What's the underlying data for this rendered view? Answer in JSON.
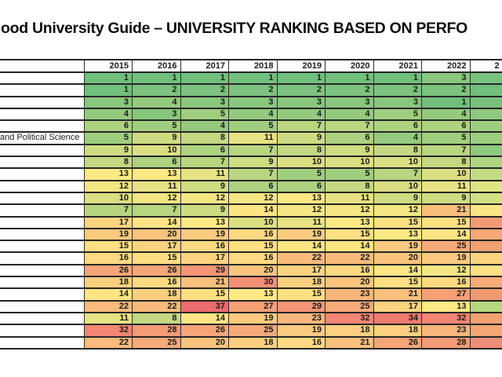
{
  "chart_data": {
    "type": "heatmap",
    "title": "ood University Guide – UNIVERSITY RANKING BASED ON PERFO",
    "x": [
      "2015",
      "2016",
      "2017",
      "2018",
      "2019",
      "2020",
      "2021",
      "2022"
    ],
    "row_labels": [
      "",
      "",
      "",
      "",
      "",
      "and Political Science",
      "",
      "",
      "",
      "",
      "",
      "",
      "",
      "",
      "",
      "",
      "",
      "",
      "",
      "",
      "",
      "",
      ""
    ],
    "rows": [
      [
        1,
        1,
        1,
        1,
        1,
        1,
        1,
        3
      ],
      [
        1,
        2,
        2,
        2,
        2,
        2,
        2,
        2
      ],
      [
        3,
        4,
        3,
        3,
        3,
        3,
        3,
        1
      ],
      [
        4,
        3,
        5,
        4,
        4,
        4,
        5,
        4
      ],
      [
        6,
        5,
        4,
        5,
        7,
        7,
        6,
        6
      ],
      [
        5,
        9,
        8,
        11,
        9,
        6,
        4,
        5
      ],
      [
        9,
        10,
        6,
        7,
        8,
        9,
        8,
        7
      ],
      [
        8,
        6,
        7,
        9,
        10,
        10,
        10,
        8
      ],
      [
        13,
        13,
        11,
        7,
        5,
        5,
        7,
        10
      ],
      [
        12,
        11,
        9,
        6,
        6,
        8,
        10,
        11
      ],
      [
        10,
        12,
        12,
        12,
        13,
        11,
        9,
        9
      ],
      [
        7,
        7,
        9,
        14,
        12,
        12,
        12,
        21
      ],
      [
        17,
        14,
        13,
        10,
        11,
        13,
        15,
        15
      ],
      [
        19,
        20,
        19,
        16,
        19,
        15,
        13,
        14
      ],
      [
        15,
        17,
        16,
        15,
        14,
        14,
        19,
        25
      ],
      [
        16,
        15,
        17,
        16,
        22,
        22,
        20,
        19
      ],
      [
        26,
        26,
        29,
        20,
        17,
        16,
        14,
        12
      ],
      [
        18,
        16,
        21,
        30,
        18,
        20,
        15,
        16
      ],
      [
        14,
        18,
        15,
        13,
        15,
        23,
        21,
        27
      ],
      [
        22,
        22,
        37,
        27,
        29,
        25,
        17,
        13
      ],
      [
        11,
        8,
        14,
        19,
        23,
        32,
        34,
        32
      ],
      [
        32,
        28,
        26,
        25,
        19,
        18,
        18,
        23
      ],
      [
        22,
        25,
        20,
        18,
        16,
        21,
        26,
        28
      ]
    ],
    "color_scale": {
      "min_value": 1,
      "min_color": "#70C07C",
      "mid_value": 13,
      "mid_color": "#FFE984",
      "max_value": 37,
      "max_color": "#EE6B6E",
      "meaning": "rank 1 = best (green), higher rank = worse (red)"
    },
    "legend_position": "none",
    "grid": true
  },
  "table": {
    "corner_label": "",
    "partial_year_label": "2",
    "partial_column_colors": [
      "#79C27D",
      "#70C07C",
      "#79C27D",
      "#8FC97F",
      "#9CCE80",
      "#9CCE80",
      "#90CA7F",
      "#AED481",
      "#C2DB82",
      "#DFE583",
      "#D2E183",
      "#FBE483",
      "#F29B72",
      "#F5A875",
      "#F2A171",
      "#FBD47E",
      "#FCE083",
      "#F5AC76",
      "#F19A70",
      "#B5D780",
      "#F2A171",
      "#F4A674",
      "#EE8D78"
    ]
  },
  "colors": {
    "background": "#ffffff",
    "grid_border": "#2e2e2e",
    "cell_text": "#1c1c1c",
    "title_text": "#0d0d0d"
  }
}
